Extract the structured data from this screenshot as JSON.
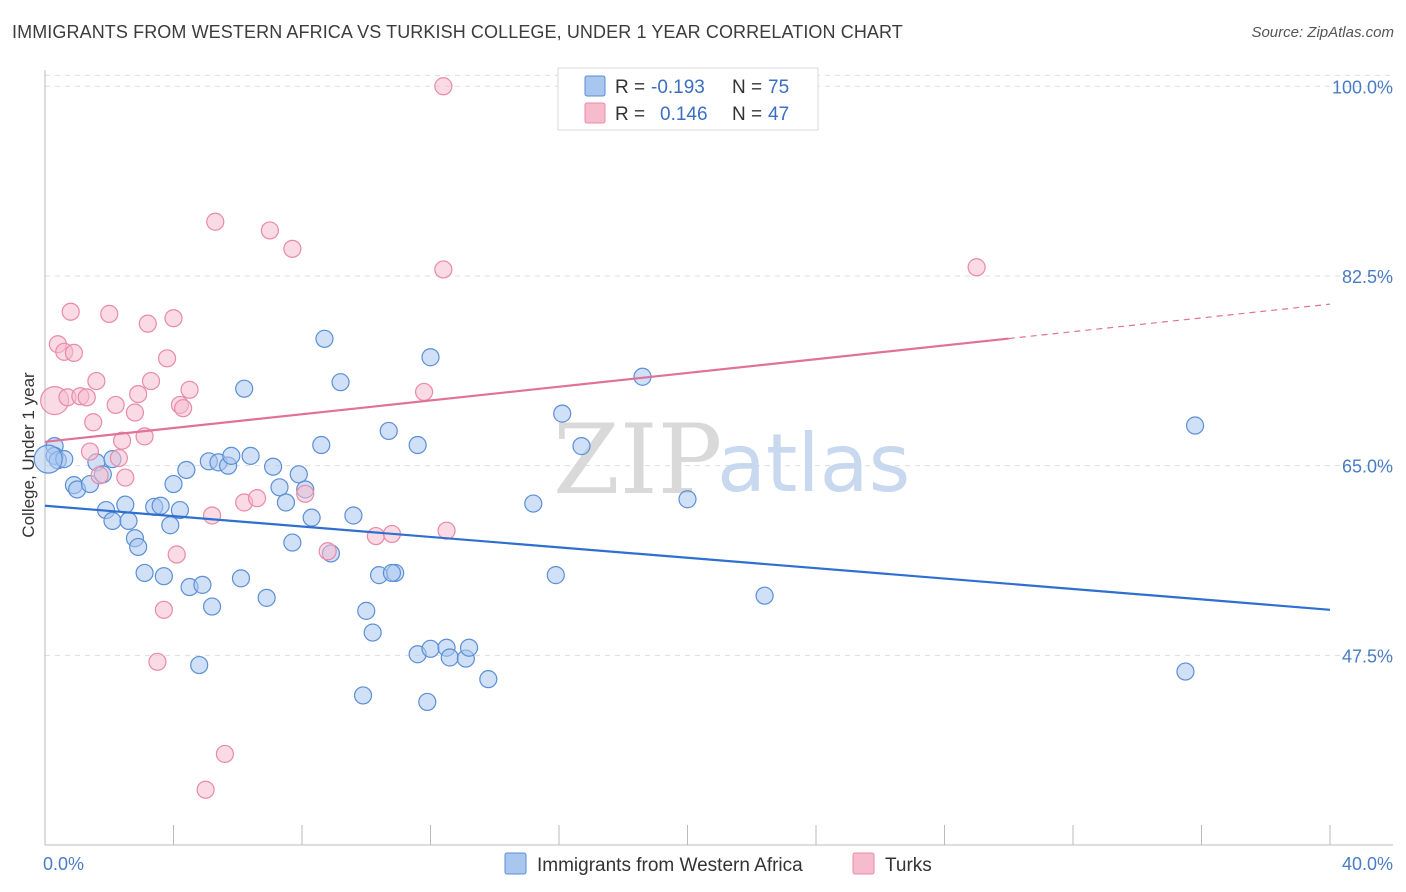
{
  "title": "IMMIGRANTS FROM WESTERN AFRICA VS TURKISH COLLEGE, UNDER 1 YEAR CORRELATION CHART",
  "source": "Source: ZipAtlas.com",
  "watermark": {
    "zip": "ZIP",
    "atlas": "atlas"
  },
  "colors": {
    "blue_fill": "#a9c6ef",
    "blue_stroke": "#5b8fd6",
    "blue_line": "#2f6fcf",
    "pink_fill": "#f6bccd",
    "pink_stroke": "#e98aa8",
    "pink_line": "#e0729a",
    "axis_text": "#4a7cc4",
    "grid": "#dddddd"
  },
  "legend": {
    "blue": {
      "r_label": "R = ",
      "r_value": "-0.193",
      "n_label": "N = ",
      "n_value": "75"
    },
    "pink": {
      "r_label": "R = ",
      "r_value": "0.146",
      "n_label": "N = ",
      "n_value": "47"
    }
  },
  "chart_data": {
    "type": "scatter",
    "title": "IMMIGRANTS FROM WESTERN AFRICA VS TURKISH COLLEGE, UNDER 1 YEAR CORRELATION CHART",
    "xlabel": "",
    "ylabel": "College, Under 1 year",
    "xlim": [
      0,
      40
    ],
    "ylim": [
      30,
      101.5
    ],
    "x_tick_labels": [
      "0.0%",
      "40.0%"
    ],
    "y_ticks": [
      47.5,
      65.0,
      82.5,
      100.0
    ],
    "y_tick_labels": [
      "47.5%",
      "65.0%",
      "82.5%",
      "100.0%"
    ],
    "grid": true,
    "legend_placement": "top-center",
    "series": [
      {
        "name": "Immigrants from Western Africa",
        "color": "#a9c6ef",
        "trend": {
          "x": [
            0,
            40
          ],
          "y": [
            61.3,
            51.7
          ],
          "dashed_from": null
        },
        "points": [
          [
            0.3,
            66.8
          ],
          [
            0.3,
            65.9
          ],
          [
            0.4,
            65.5
          ],
          [
            0.6,
            65.6
          ],
          [
            0.9,
            63.2
          ],
          [
            1.0,
            62.8
          ],
          [
            1.4,
            63.3
          ],
          [
            1.6,
            65.3
          ],
          [
            1.8,
            64.2
          ],
          [
            2.1,
            65.6
          ],
          [
            1.9,
            60.9
          ],
          [
            2.1,
            59.9
          ],
          [
            2.5,
            61.4
          ],
          [
            2.6,
            59.9
          ],
          [
            2.8,
            58.3
          ],
          [
            2.9,
            57.5
          ],
          [
            3.1,
            55.1
          ],
          [
            3.4,
            61.2
          ],
          [
            3.6,
            61.3
          ],
          [
            3.7,
            54.8
          ],
          [
            3.9,
            59.5
          ],
          [
            4.0,
            63.3
          ],
          [
            4.2,
            60.9
          ],
          [
            4.4,
            64.6
          ],
          [
            4.5,
            53.8
          ],
          [
            4.8,
            46.6
          ],
          [
            4.9,
            54.0
          ],
          [
            5.1,
            65.4
          ],
          [
            5.2,
            52.0
          ],
          [
            5.4,
            65.3
          ],
          [
            5.7,
            65.0
          ],
          [
            5.8,
            65.9
          ],
          [
            6.1,
            54.6
          ],
          [
            6.2,
            72.1
          ],
          [
            6.4,
            65.9
          ],
          [
            6.9,
            52.8
          ],
          [
            7.1,
            64.9
          ],
          [
            7.3,
            63.0
          ],
          [
            7.5,
            61.6
          ],
          [
            7.7,
            57.9
          ],
          [
            7.9,
            64.2
          ],
          [
            8.1,
            62.8
          ],
          [
            8.3,
            60.2
          ],
          [
            8.6,
            66.9
          ],
          [
            8.7,
            76.7
          ],
          [
            8.9,
            56.9
          ],
          [
            9.2,
            72.7
          ],
          [
            9.6,
            60.4
          ],
          [
            9.9,
            43.8
          ],
          [
            10.0,
            51.6
          ],
          [
            10.2,
            49.6
          ],
          [
            10.4,
            54.9
          ],
          [
            10.9,
            55.1
          ],
          [
            10.7,
            68.2
          ],
          [
            10.8,
            55.1
          ],
          [
            11.6,
            66.9
          ],
          [
            11.9,
            43.2
          ],
          [
            12.0,
            75.0
          ],
          [
            11.6,
            47.6
          ],
          [
            12.0,
            48.1
          ],
          [
            12.5,
            48.2
          ],
          [
            12.6,
            47.3
          ],
          [
            13.1,
            47.2
          ],
          [
            13.2,
            48.2
          ],
          [
            13.8,
            45.3
          ],
          [
            15.2,
            61.5
          ],
          [
            15.9,
            54.9
          ],
          [
            16.1,
            69.8
          ],
          [
            16.7,
            66.8
          ],
          [
            18.6,
            73.2
          ],
          [
            20.0,
            61.9
          ],
          [
            22.4,
            53.0
          ],
          [
            35.5,
            46.0
          ],
          [
            35.8,
            68.7
          ],
          [
            0.1,
            65.6
          ]
        ]
      },
      {
        "name": "Turks",
        "color": "#f6bccd",
        "trend": {
          "x": [
            0,
            40
          ],
          "y": [
            67.2,
            79.9
          ],
          "dashed_from": 30.0
        },
        "points": [
          [
            0.3,
            71.0
          ],
          [
            0.4,
            76.2
          ],
          [
            0.6,
            75.5
          ],
          [
            0.7,
            71.3
          ],
          [
            0.8,
            79.2
          ],
          [
            0.9,
            75.4
          ],
          [
            1.1,
            71.4
          ],
          [
            1.3,
            71.3
          ],
          [
            1.4,
            66.3
          ],
          [
            1.5,
            69.0
          ],
          [
            1.6,
            72.8
          ],
          [
            1.7,
            64.1
          ],
          [
            2.0,
            79.0
          ],
          [
            2.2,
            70.6
          ],
          [
            2.3,
            65.7
          ],
          [
            2.4,
            67.3
          ],
          [
            2.5,
            63.9
          ],
          [
            2.8,
            69.9
          ],
          [
            2.9,
            71.6
          ],
          [
            3.1,
            67.7
          ],
          [
            3.2,
            78.1
          ],
          [
            3.3,
            72.8
          ],
          [
            3.5,
            46.9
          ],
          [
            3.7,
            51.7
          ],
          [
            3.8,
            74.9
          ],
          [
            4.0,
            78.6
          ],
          [
            4.1,
            56.8
          ],
          [
            4.2,
            70.6
          ],
          [
            4.3,
            70.3
          ],
          [
            4.5,
            72.0
          ],
          [
            5.0,
            35.1
          ],
          [
            5.2,
            60.4
          ],
          [
            5.3,
            87.5
          ],
          [
            5.6,
            38.4
          ],
          [
            6.2,
            61.6
          ],
          [
            6.6,
            62.0
          ],
          [
            7.0,
            86.7
          ],
          [
            7.7,
            85.0
          ],
          [
            8.1,
            62.4
          ],
          [
            8.8,
            57.1
          ],
          [
            10.3,
            58.5
          ],
          [
            10.8,
            58.7
          ],
          [
            11.8,
            71.8
          ],
          [
            12.4,
            83.1
          ],
          [
            12.5,
            59.0
          ],
          [
            12.4,
            100.0
          ],
          [
            29.0,
            83.3
          ]
        ]
      }
    ]
  },
  "bottom_legend": {
    "blue_label": "Immigrants from Western Africa",
    "pink_label": "Turks"
  }
}
